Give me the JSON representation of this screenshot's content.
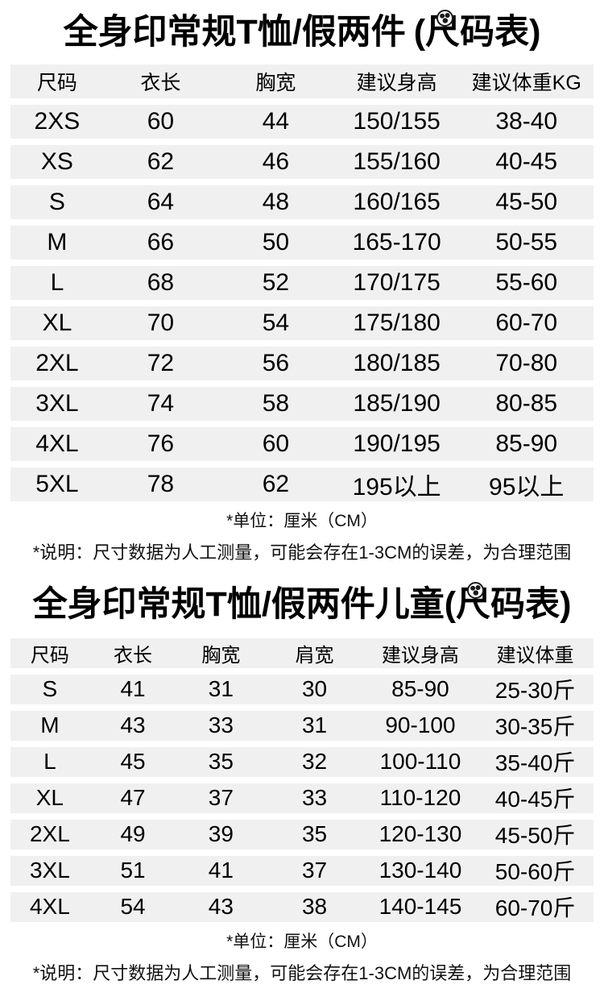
{
  "theme": {
    "background": "#ffffff",
    "row_stripe": "#f0f0f0",
    "text": "#000000"
  },
  "adult": {
    "title_main": "全身印常规T恤/假两件",
    "title_suffix": "(尺码表)",
    "watermark_icon": "round-panda-stamp-icon",
    "table": {
      "headers": [
        "尺码",
        "衣长",
        "胸宽",
        "建议身高",
        "建议体重KG"
      ],
      "rows": [
        [
          "2XS",
          "60",
          "44",
          "150/155",
          "38-40"
        ],
        [
          "XS",
          "62",
          "46",
          "155/160",
          "40-45"
        ],
        [
          "S",
          "64",
          "48",
          "160/165",
          "45-50"
        ],
        [
          "M",
          "66",
          "50",
          "165-170",
          "50-55"
        ],
        [
          "L",
          "68",
          "52",
          "170/175",
          "55-60"
        ],
        [
          "XL",
          "70",
          "54",
          "175/180",
          "60-70"
        ],
        [
          "2XL",
          "72",
          "56",
          "180/185",
          "70-80"
        ],
        [
          "3XL",
          "74",
          "58",
          "185/190",
          "80-85"
        ],
        [
          "4XL",
          "76",
          "60",
          "190/195",
          "85-90"
        ],
        [
          "5XL",
          "78",
          "62",
          "195以上",
          "95以上"
        ]
      ]
    },
    "unit_note": "*单位：厘米（CM）",
    "measure_note": "*说明：尺寸数据为人工测量，可能会存在1-3CM的误差，为合理范围"
  },
  "kids": {
    "title_main": "全身印常规T恤/假两件儿童",
    "title_suffix": "(尺码表)",
    "watermark_icon": "round-panda-stamp-icon",
    "table": {
      "headers": [
        "尺码",
        "衣长",
        "胸宽",
        "肩宽",
        "建议身高",
        "建议体重"
      ],
      "rows": [
        [
          "S",
          "41",
          "31",
          "30",
          "85-90",
          "25-30斤"
        ],
        [
          "M",
          "43",
          "33",
          "31",
          "90-100",
          "30-35斤"
        ],
        [
          "L",
          "45",
          "35",
          "32",
          "100-110",
          "35-40斤"
        ],
        [
          "XL",
          "47",
          "37",
          "33",
          "110-120",
          "40-45斤"
        ],
        [
          "2XL",
          "49",
          "39",
          "35",
          "120-130",
          "45-50斤"
        ],
        [
          "3XL",
          "51",
          "41",
          "37",
          "130-140",
          "50-60斤"
        ],
        [
          "4XL",
          "54",
          "43",
          "38",
          "140-145",
          "60-70斤"
        ]
      ]
    },
    "unit_note": "*单位：厘米（CM）",
    "measure_note": "*说明：尺寸数据为人工测量，可能会存在1-3CM的误差，为合理范围"
  }
}
